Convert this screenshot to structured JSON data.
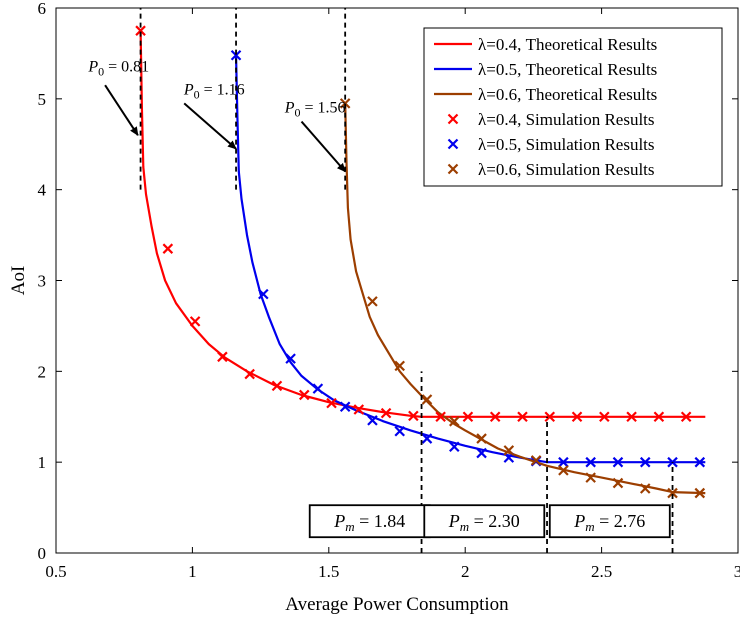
{
  "chart_data": {
    "type": "line",
    "xlabel": "Average Power Consumption",
    "ylabel": "AoI",
    "xlim": [
      0.5,
      3
    ],
    "ylim": [
      0,
      6
    ],
    "x_ticks": [
      "0.5",
      "1",
      "1.5",
      "2",
      "2.5",
      "3"
    ],
    "y_ticks": [
      "0",
      "1",
      "2",
      "3",
      "4",
      "5",
      "6"
    ],
    "legend_position": "top-right",
    "series": [
      {
        "name": "λ=0.4, Theoretical Results",
        "kind": "line",
        "color": "#ff0000",
        "x": [
          0.81,
          0.815,
          0.82,
          0.83,
          0.85,
          0.87,
          0.9,
          0.94,
          1.0,
          1.06,
          1.12,
          1.2,
          1.3,
          1.4,
          1.5,
          1.6,
          1.7,
          1.8,
          1.84,
          1.9,
          2.0,
          2.2,
          2.4,
          2.6,
          2.88
        ],
        "y": [
          5.75,
          4.9,
          4.25,
          3.95,
          3.6,
          3.3,
          3.0,
          2.75,
          2.5,
          2.3,
          2.15,
          2.0,
          1.85,
          1.74,
          1.66,
          1.6,
          1.55,
          1.51,
          1.5,
          1.5,
          1.5,
          1.5,
          1.5,
          1.5,
          1.5
        ]
      },
      {
        "name": "λ=0.5, Theoretical Results",
        "kind": "line",
        "color": "#0000ee",
        "x": [
          1.16,
          1.165,
          1.17,
          1.18,
          1.2,
          1.22,
          1.25,
          1.28,
          1.32,
          1.36,
          1.4,
          1.46,
          1.52,
          1.6,
          1.7,
          1.8,
          1.9,
          2.0,
          2.1,
          2.2,
          2.3,
          2.4,
          2.6,
          2.88
        ],
        "y": [
          5.5,
          4.8,
          4.2,
          3.9,
          3.5,
          3.2,
          2.85,
          2.6,
          2.3,
          2.1,
          1.95,
          1.8,
          1.68,
          1.57,
          1.45,
          1.35,
          1.26,
          1.18,
          1.11,
          1.05,
          1.0,
          1.0,
          1.0,
          1.0
        ]
      },
      {
        "name": "λ=0.6, Theoretical Results",
        "kind": "line",
        "color": "#9c3e00",
        "x": [
          1.56,
          1.565,
          1.57,
          1.58,
          1.6,
          1.62,
          1.65,
          1.68,
          1.72,
          1.76,
          1.8,
          1.85,
          1.9,
          1.96,
          2.0,
          2.06,
          2.12,
          2.2,
          2.3,
          2.4,
          2.5,
          2.6,
          2.7,
          2.76,
          2.88
        ],
        "y": [
          4.95,
          4.3,
          3.8,
          3.45,
          3.1,
          2.9,
          2.6,
          2.4,
          2.2,
          2.0,
          1.86,
          1.7,
          1.55,
          1.42,
          1.35,
          1.25,
          1.15,
          1.06,
          0.96,
          0.89,
          0.83,
          0.77,
          0.71,
          0.67,
          0.66
        ]
      },
      {
        "name": "λ=0.4, Simulation Results",
        "kind": "markers",
        "marker": "x",
        "color": "#ff0000",
        "x": [
          0.81,
          0.91,
          1.01,
          1.11,
          1.21,
          1.31,
          1.41,
          1.51,
          1.61,
          1.71,
          1.81,
          1.91,
          2.01,
          2.11,
          2.21,
          2.31,
          2.41,
          2.51,
          2.61,
          2.71,
          2.81
        ],
        "y": [
          5.75,
          3.35,
          2.55,
          2.16,
          1.97,
          1.84,
          1.74,
          1.65,
          1.58,
          1.54,
          1.51,
          1.5,
          1.5,
          1.5,
          1.5,
          1.5,
          1.5,
          1.5,
          1.5,
          1.5,
          1.5
        ]
      },
      {
        "name": "λ=0.5, Simulation Results",
        "kind": "markers",
        "marker": "x",
        "color": "#0000ee",
        "x": [
          1.16,
          1.26,
          1.36,
          1.46,
          1.56,
          1.66,
          1.76,
          1.86,
          1.96,
          2.06,
          2.16,
          2.26,
          2.36,
          2.46,
          2.56,
          2.66,
          2.76,
          2.86
        ],
        "y": [
          5.48,
          2.85,
          2.14,
          1.81,
          1.61,
          1.46,
          1.34,
          1.26,
          1.17,
          1.1,
          1.05,
          1.01,
          1.0,
          1.0,
          1.0,
          1.0,
          1.0,
          1.0
        ]
      },
      {
        "name": "λ=0.6, Simulation Results",
        "kind": "markers",
        "marker": "x",
        "color": "#9c3e00",
        "x": [
          1.56,
          1.66,
          1.76,
          1.86,
          1.96,
          2.06,
          2.16,
          2.26,
          2.36,
          2.46,
          2.56,
          2.66,
          2.76,
          2.86
        ],
        "y": [
          4.95,
          2.77,
          2.06,
          1.69,
          1.45,
          1.26,
          1.13,
          1.02,
          0.91,
          0.83,
          0.77,
          0.71,
          0.66,
          0.66
        ]
      }
    ],
    "vlines": [
      {
        "x": 0.81,
        "y0": 4.0,
        "y1": 6.0
      },
      {
        "x": 1.16,
        "y0": 4.0,
        "y1": 6.0
      },
      {
        "x": 1.56,
        "y0": 4.0,
        "y1": 6.0
      },
      {
        "x": 1.84,
        "y0": 0.0,
        "y1": 2.0
      },
      {
        "x": 2.3,
        "y0": 0.0,
        "y1": 1.5
      },
      {
        "x": 2.76,
        "y0": 0.0,
        "y1": 1.0
      }
    ],
    "annotations": [
      {
        "text": "P0 = 0.81",
        "label_x": 0.73,
        "label_y": 5.3,
        "arrow_from": [
          0.68,
          5.15
        ],
        "arrow_to": [
          0.8,
          4.6
        ]
      },
      {
        "text": "P0 = 1.16",
        "label_x": 1.08,
        "label_y": 5.05,
        "arrow_from": [
          0.97,
          4.95
        ],
        "arrow_to": [
          1.16,
          4.45
        ]
      },
      {
        "text": "P0 = 1.56",
        "label_x": 1.45,
        "label_y": 4.85,
        "arrow_from": [
          1.4,
          4.75
        ],
        "arrow_to": [
          1.56,
          4.2
        ]
      }
    ],
    "boxed_labels": [
      {
        "text": "Pm = 1.84",
        "x_center": 1.65,
        "y": 0.35
      },
      {
        "text": "Pm = 2.30",
        "x_center": 2.07,
        "y": 0.35
      },
      {
        "text": "Pm = 2.76",
        "x_center": 2.53,
        "y": 0.35
      }
    ]
  }
}
